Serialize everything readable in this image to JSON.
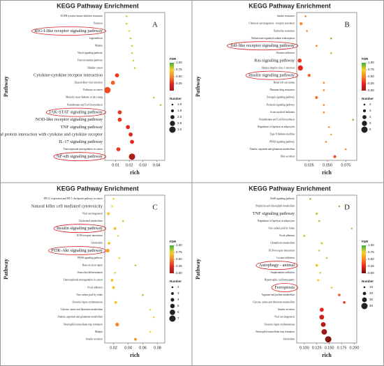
{
  "chart_data": [
    {
      "type": "scatter",
      "title": "KEGG Pathway Enrichment",
      "panel_label": "A",
      "xlabel": "rich",
      "ylabel": "Pathway",
      "categories": [
        "EGFR tyrosine kinase inhibitor resistance",
        "Pertussis",
        "RIG-I-like receptor signaling pathway",
        "Legionellosis",
        "Malaria",
        "Notch signaling pathway",
        "Fanconi anemia pathway",
        "Bladder cancer",
        "Cytokine-cytokine receptor interaction",
        "Epstein-Barr virus infection",
        "Pathways in cancer",
        "Maturity onset diabetes of the young",
        "Pantothenate and CoA biosynthesis",
        "JAK-STAT signaling pathway",
        "NOD-like receptor signaling pathway",
        "TNF signaling pathway",
        "Viral protein interaction with cytokine and cytokine receptor",
        "IL-17 signaling pathway",
        "Transcriptional misregulation in cancer",
        "NF-κB signaling pathway"
      ],
      "x": [
        0.018,
        0.018,
        0.02,
        0.021,
        0.022,
        0.022,
        0.023,
        0.024,
        0.011,
        0.008,
        0.004,
        0.038,
        0.043,
        0.013,
        0.013,
        0.019,
        0.021,
        0.022,
        0.012,
        0.022
      ],
      "sizes": [
        1,
        1,
        1,
        1,
        1,
        1,
        1,
        1,
        2,
        2,
        3,
        1,
        1,
        2,
        2,
        2,
        2,
        2,
        2,
        3
      ],
      "fdr": [
        0.8,
        0.8,
        0.75,
        0.8,
        0.8,
        0.8,
        0.8,
        0.8,
        0.3,
        0.4,
        0.35,
        0.8,
        0.85,
        0.3,
        0.3,
        0.25,
        0.25,
        0.25,
        0.3,
        0.05
      ],
      "xlim": [
        0.002,
        0.046
      ],
      "xticks": [
        0.01,
        0.02,
        0.03,
        0.04
      ],
      "color_legend_title": "FDR",
      "color_lim": [
        0,
        1
      ],
      "color_ticks": [
        {
          "value": 1,
          "label": "1.00"
        },
        {
          "value": 0.75,
          "label": "0.75"
        },
        {
          "value": 0.5,
          "label": "0.50"
        },
        {
          "value": 0.25,
          "label": "0.25"
        }
      ],
      "colorscale": [
        "#a11a1a",
        "#e5261c",
        "#f7862a",
        "#f2d22a",
        "#3bb03b"
      ],
      "size_legend_title": "Number",
      "size_ticks": [
        {
          "value": 1,
          "label": "1.0"
        },
        {
          "value": 1.5,
          "label": "1.5"
        },
        {
          "value": 2,
          "label": "2.0"
        },
        {
          "value": 2.5,
          "label": "2.5"
        },
        {
          "value": 3,
          "label": "3.0"
        }
      ],
      "highlighted": [
        2,
        13,
        19
      ],
      "large_labels": [
        2,
        8,
        13,
        14,
        15,
        16,
        17,
        19
      ]
    },
    {
      "type": "scatter",
      "title": "KEGG Pathway Enrichment",
      "panel_label": "B",
      "xlabel": "rich",
      "ylabel": "Pathway",
      "categories": [
        "Insulin resistance",
        "Chemical carcinogenesis - receptor activation",
        "Endocrine resistance",
        "Aldosterone-regulated sodium reabsorption",
        "Toll-like receptor signaling pathway",
        "Nicotine addiction",
        "Ras signaling pathway",
        "Herpes simplex virus 1 infection",
        "Insulin signaling pathway",
        "Renal cell carcinoma",
        "Platinum drug resistance",
        "Estrogen signaling pathway",
        "Prolactin signaling pathway",
        "Acute myeloid leukemia",
        "Pantothenate and CoA biosynthesis",
        "Regulation of lipolysis in adipocytes",
        "Type II diabetes mellitus",
        "PPAR signaling pathway",
        "Alanine, aspartate and glutamate metabolism",
        "Bile secretion"
      ],
      "x": [
        0.02,
        0.014,
        0.022,
        0.055,
        0.035,
        0.055,
        0.012,
        0.013,
        0.025,
        0.045,
        0.045,
        0.035,
        0.045,
        0.045,
        0.085,
        0.052,
        0.055,
        0.048,
        0.075,
        0.06
      ],
      "sizes": [
        2,
        3,
        2,
        2,
        2,
        2,
        4,
        5,
        3,
        2,
        2,
        3,
        2,
        2,
        2,
        2,
        2,
        2,
        2,
        3
      ],
      "fdr": [
        0.5,
        0.5,
        0.5,
        0.9,
        0.5,
        0.85,
        0.3,
        0.25,
        0.4,
        0.5,
        0.5,
        0.45,
        0.5,
        0.5,
        0.9,
        0.5,
        0.6,
        0.5,
        0.55,
        0.35
      ],
      "xlim": [
        0.008,
        0.09
      ],
      "xticks": [
        {
          "value": 0.025,
          "label": "0.025"
        },
        {
          "value": 0.05,
          "label": "0.050"
        },
        {
          "value": 0.075,
          "label": "0.075"
        }
      ],
      "color_legend_title": "FDR",
      "color_lim": [
        0,
        1
      ],
      "color_ticks": [
        {
          "value": 1,
          "label": "1.00"
        },
        {
          "value": 0.75,
          "label": "0.75"
        },
        {
          "value": 0.5,
          "label": "0.50"
        },
        {
          "value": 0.25,
          "label": "0.25"
        },
        {
          "value": 0,
          "label": "0.00"
        }
      ],
      "colorscale": [
        "#a11a1a",
        "#e5261c",
        "#f7862a",
        "#f2d22a",
        "#3bb03b"
      ],
      "size_legend_title": "Number",
      "size_ticks": [
        2,
        3,
        4,
        5,
        6
      ],
      "highlighted": [
        4,
        8
      ],
      "large_labels": [
        4,
        6,
        8
      ]
    },
    {
      "type": "scatter",
      "title": "KEGG Pathway Enrichment",
      "panel_label": "C",
      "xlabel": "rich",
      "ylabel": "Pathway",
      "categories": [
        "PD-L1 expression and PD-1 checkpoint pathway in cancer",
        "Natural killer cell mediated cytotoxicity",
        "Viral carcinogenesis",
        "Cholesterol metabolism",
        "Insulin signaling pathway",
        "ECM-receptor interaction",
        "Alcoholism",
        "PI3K-Akt signaling pathway",
        "PPAR signaling pathway",
        "Base excision repair",
        "Osteoclast differentiation",
        "Transcriptional misregulation in cancer",
        "Focal adhesion",
        "One carbon pool by folate",
        "Systemic lupus erythematosus",
        "Glycine, serine and threonine metabolism",
        "Alanine, aspartate and glutamate metabolism",
        "Neutrophil extracellular trap formation",
        "Malaria",
        "Insulin secretion"
      ],
      "x": [
        0.02,
        0.018,
        0.013,
        0.033,
        0.022,
        0.026,
        0.014,
        0.012,
        0.028,
        0.05,
        0.022,
        0.018,
        0.02,
        0.06,
        0.023,
        0.07,
        0.075,
        0.025,
        0.07,
        0.05
      ],
      "sizes": [
        2,
        2,
        3,
        2,
        3,
        2,
        3,
        4,
        2,
        2,
        2,
        3,
        3,
        2,
        3,
        2,
        2,
        4,
        2,
        3
      ],
      "fdr": [
        0.75,
        0.75,
        0.7,
        0.8,
        0.7,
        0.75,
        0.7,
        0.6,
        0.75,
        0.85,
        0.75,
        0.7,
        0.7,
        0.85,
        0.7,
        0.75,
        0.75,
        0.5,
        0.75,
        0.55
      ],
      "xlim": [
        0.008,
        0.09
      ],
      "xticks": [
        0.02,
        0.04,
        0.06,
        0.08
      ],
      "color_legend_title": "FDR",
      "color_lim": [
        0,
        1
      ],
      "color_ticks": [
        {
          "value": 1,
          "label": "1.00"
        },
        {
          "value": 0.75,
          "label": "0.75"
        },
        {
          "value": 0.5,
          "label": "0.50"
        },
        {
          "value": 0.25,
          "label": "0.25"
        },
        {
          "value": 0,
          "label": "0.00"
        }
      ],
      "colorscale": [
        "#a11a1a",
        "#e5261c",
        "#f7862a",
        "#f2d22a",
        "#3bb03b"
      ],
      "size_legend_title": "Number",
      "size_ticks": [
        2,
        3,
        4,
        5,
        6,
        7
      ],
      "highlighted": [
        4,
        7
      ],
      "large_labels": [
        1,
        4,
        7
      ]
    },
    {
      "type": "scatter",
      "title": "KEGG Pathway Enrichment",
      "panel_label": "D",
      "xlabel": "rich",
      "ylabel": "Pathway",
      "categories": [
        "ErbB signaling pathway",
        "Porphyrin and chlorophyll metabolism",
        "TNF signaling pathway",
        "Regulation of lipolysis in adipocytes",
        "One carbon pool by folate",
        "Focal adhesion",
        "Glutathione metabolism",
        "ECM-receptor interaction",
        "Cocaine addiction",
        "Autophagy - animal",
        "Amphetamine addiction",
        "Hypertrophic cardiomyopathy",
        "Ferroptosis",
        "Arginine and proline metabolism",
        "Glycine, serine and threonine metabolism",
        "Insulin secretion",
        "Viral carcinogenesis",
        "Systemic lupus erythematosus",
        "Neutrophil extracellular trap formation",
        "Alcoholism"
      ],
      "x": [
        0.112,
        0.17,
        0.125,
        0.13,
        0.195,
        0.1,
        0.135,
        0.13,
        0.145,
        0.125,
        0.132,
        0.128,
        0.155,
        0.17,
        0.18,
        0.135,
        0.135,
        0.138,
        0.14,
        0.148
      ],
      "sizes": [
        10,
        10,
        12,
        10,
        8,
        12,
        12,
        10,
        10,
        15,
        10,
        12,
        10,
        15,
        15,
        25,
        30,
        30,
        35,
        40
      ],
      "fdr": [
        0.9,
        0.9,
        0.85,
        0.85,
        0.9,
        0.8,
        0.8,
        0.8,
        0.8,
        0.7,
        0.8,
        0.75,
        0.7,
        0.4,
        0.3,
        0.25,
        0.2,
        0.15,
        0.1,
        0.05
      ],
      "xlim": [
        0.085,
        0.205
      ],
      "xticks": [
        {
          "value": 0.1,
          "label": "0.100"
        },
        {
          "value": 0.125,
          "label": "0.125"
        },
        {
          "value": 0.15,
          "label": "0.150"
        },
        {
          "value": 0.175,
          "label": "0.175"
        },
        {
          "value": 0.2,
          "label": "0.200"
        }
      ],
      "color_legend_title": "FDR",
      "color_lim": [
        0,
        1
      ],
      "color_ticks": [
        {
          "value": 1,
          "label": "1.00"
        },
        {
          "value": 0.75,
          "label": "0.75"
        },
        {
          "value": 0.5,
          "label": "0.50"
        },
        {
          "value": 0.25,
          "label": "0.25"
        },
        {
          "value": 0,
          "label": "0.00"
        }
      ],
      "colorscale": [
        "#6b1010",
        "#e5261c",
        "#f7862a",
        "#f2d22a",
        "#3bb03b"
      ],
      "size_legend_title": "Number",
      "size_ticks": [
        10,
        20,
        30,
        40
      ],
      "highlighted": [
        9,
        12
      ],
      "large_labels": [
        2,
        9,
        12
      ]
    }
  ]
}
